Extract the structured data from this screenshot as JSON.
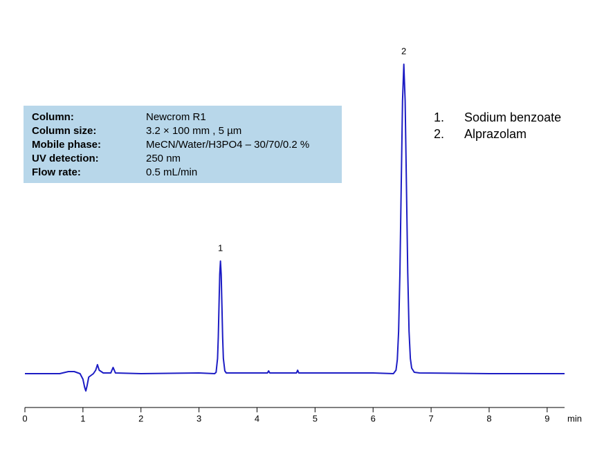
{
  "chart_data": {
    "type": "line",
    "x_label": "min",
    "xlim": [
      0,
      9.3
    ],
    "xticks": [
      0,
      1,
      2,
      3,
      4,
      5,
      6,
      7,
      8,
      9
    ],
    "ylim": [
      -49,
      481
    ],
    "series": [
      {
        "color": "#1c1cc4",
        "x": [
          0,
          0.3,
          0.6,
          0.75,
          0.85,
          0.95,
          1.0,
          1.03,
          1.05,
          1.07,
          1.1,
          1.18,
          1.22,
          1.25,
          1.28,
          1.35,
          1.48,
          1.52,
          1.56,
          2.0,
          3.0,
          3.27,
          3.295,
          3.32,
          3.3325,
          3.345,
          3.3575,
          3.37,
          3.3825,
          3.395,
          3.4075,
          3.42,
          3.445,
          3.47,
          4.0,
          4.18,
          4.2,
          4.22,
          4.68,
          4.7,
          4.72,
          6.0,
          6.35,
          6.395,
          6.4175,
          6.44,
          6.4625,
          6.485,
          6.5075,
          6.53,
          6.5525,
          6.575,
          6.5975,
          6.62,
          6.6425,
          6.665,
          6.71,
          6.8,
          8.0,
          9.3
        ],
        "values": [
          0,
          0,
          0,
          3,
          3,
          0,
          -8,
          -20,
          -25,
          -18,
          -5,
          0,
          5,
          13,
          5,
          1,
          1,
          9,
          1,
          0,
          1,
          0,
          2,
          22,
          53,
          99,
          144,
          163,
          144,
          99,
          53,
          22,
          4,
          1,
          1,
          1,
          4,
          1,
          1,
          5,
          1,
          1,
          0,
          5,
          20,
          61,
          146,
          272,
          395,
          448,
          395,
          272,
          146,
          61,
          22,
          8,
          2,
          1,
          0,
          0
        ]
      }
    ],
    "peaks": [
      {
        "label": "1",
        "time": 3.37
      },
      {
        "label": "2",
        "time": 6.53
      }
    ],
    "conditions": [
      {
        "label": "Column:",
        "value": "Newcrom R1"
      },
      {
        "label": "Column size:",
        "value": "3.2 × 100 mm , 5 µm"
      },
      {
        "label": "Mobile phase:",
        "value": "MeCN/Water/H3PO4 – 30/70/0.2 %"
      },
      {
        "label": "UV detection:",
        "value": "250 nm"
      },
      {
        "label": "Flow rate:",
        "value": "0.5 mL/min"
      }
    ],
    "compounds": [
      {
        "number": "1.",
        "name": "Sodium benzoate"
      },
      {
        "number": "2.",
        "name": "Alprazolam"
      }
    ]
  }
}
